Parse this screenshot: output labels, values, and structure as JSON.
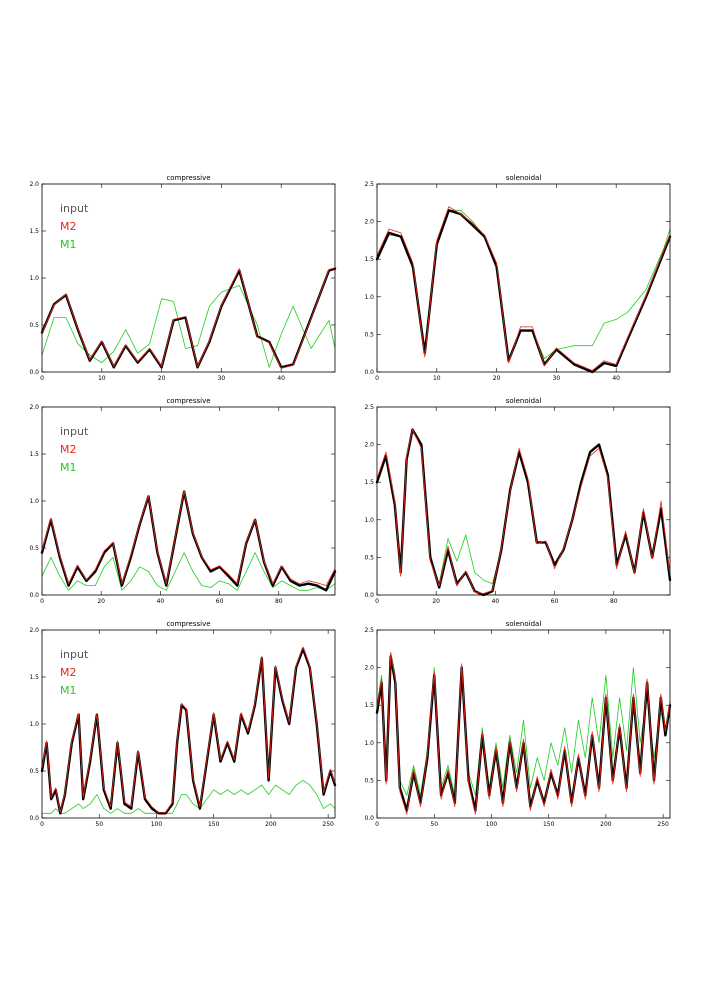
{
  "colors": {
    "input": "#000000",
    "M2": "#e8261a",
    "M1": "#22cc22"
  },
  "chart_data": [
    {
      "type": "line",
      "title": "compressive",
      "xlim": [
        0,
        49
      ],
      "ylim": [
        0,
        2.0
      ],
      "xticks": [
        0,
        10,
        20,
        30,
        40
      ],
      "yticks": [
        0.0,
        0.5,
        1.0,
        1.5,
        2.0
      ],
      "xtick_labels": [
        "0",
        "10",
        "20",
        "30",
        "40"
      ],
      "ytick_labels": [
        "0.0",
        "0.5",
        "1.0",
        "1.5",
        "2.0"
      ],
      "legend": [
        "input",
        "M2",
        "M1"
      ],
      "x": [
        0,
        2,
        4,
        6,
        8,
        10,
        12,
        14,
        16,
        18,
        20,
        22,
        24,
        26,
        28,
        30,
        33,
        36,
        38,
        40,
        42,
        45,
        48,
        49
      ],
      "series": [
        {
          "name": "input",
          "values": [
            0.42,
            0.72,
            0.82,
            0.45,
            0.12,
            0.32,
            0.05,
            0.28,
            0.1,
            0.24,
            0.05,
            0.55,
            0.58,
            0.05,
            0.32,
            0.7,
            1.08,
            0.38,
            0.32,
            0.05,
            0.08,
            0.58,
            1.08,
            1.1
          ]
        },
        {
          "name": "M2",
          "values": [
            0.41,
            0.71,
            0.83,
            0.46,
            0.13,
            0.33,
            0.06,
            0.29,
            0.11,
            0.25,
            0.06,
            0.56,
            0.59,
            0.06,
            0.33,
            0.71,
            1.1,
            0.37,
            0.31,
            0.04,
            0.07,
            0.57,
            1.09,
            1.11
          ]
        },
        {
          "name": "M1",
          "values": [
            0.18,
            0.58,
            0.58,
            0.3,
            0.18,
            0.1,
            0.22,
            0.45,
            0.2,
            0.3,
            0.78,
            0.75,
            0.25,
            0.28,
            0.7,
            0.85,
            0.92,
            0.5,
            0.05,
            0.4,
            0.7,
            0.25,
            0.55,
            0.25
          ]
        }
      ]
    },
    {
      "type": "line",
      "title": "solenoidal",
      "xlim": [
        0,
        49
      ],
      "ylim": [
        0,
        2.5
      ],
      "xticks": [
        0,
        10,
        20,
        30,
        40
      ],
      "yticks": [
        0.0,
        0.5,
        1.0,
        1.5,
        2.0,
        2.5
      ],
      "xtick_labels": [
        "0",
        "10",
        "20",
        "30",
        "40"
      ],
      "ytick_labels": [
        "0.0",
        "0.5",
        "1.0",
        "1.5",
        "2.0",
        "2.5"
      ],
      "x": [
        0,
        2,
        4,
        6,
        8,
        10,
        12,
        14,
        16,
        18,
        20,
        22,
        24,
        26,
        28,
        30,
        33,
        36,
        38,
        40,
        42,
        45,
        48,
        49
      ],
      "series": [
        {
          "name": "input",
          "values": [
            1.5,
            1.85,
            1.8,
            1.4,
            0.25,
            1.7,
            2.15,
            2.1,
            1.95,
            1.8,
            1.4,
            0.15,
            0.55,
            0.55,
            0.1,
            0.3,
            0.1,
            0.0,
            0.12,
            0.08,
            0.45,
            1.0,
            1.6,
            1.8
          ]
        },
        {
          "name": "M2",
          "values": [
            1.55,
            1.9,
            1.85,
            1.45,
            0.2,
            1.75,
            2.2,
            2.1,
            1.98,
            1.82,
            1.45,
            0.12,
            0.6,
            0.6,
            0.08,
            0.32,
            0.12,
            0.02,
            0.15,
            0.1,
            0.47,
            1.02,
            1.62,
            1.82
          ]
        },
        {
          "name": "M1",
          "values": [
            1.5,
            1.82,
            1.8,
            1.38,
            0.3,
            1.68,
            2.15,
            2.15,
            2.0,
            1.8,
            1.4,
            0.18,
            0.55,
            0.55,
            0.18,
            0.3,
            0.35,
            0.35,
            0.65,
            0.7,
            0.8,
            1.1,
            1.65,
            1.9
          ]
        }
      ]
    },
    {
      "type": "line",
      "title": "compressive",
      "xlim": [
        0,
        99
      ],
      "ylim": [
        0,
        2.0
      ],
      "xticks": [
        0,
        20,
        40,
        60,
        80
      ],
      "yticks": [
        0.0,
        0.5,
        1.0,
        1.5,
        2.0
      ],
      "xtick_labels": [
        "0",
        "20",
        "40",
        "60",
        "80"
      ],
      "ytick_labels": [
        "0.0",
        "0.5",
        "1.0",
        "1.5",
        "2.0"
      ],
      "legend": [
        "input",
        "M2",
        "M1"
      ],
      "x": [
        0,
        3,
        6,
        9,
        12,
        15,
        18,
        21,
        24,
        27,
        30,
        33,
        36,
        39,
        42,
        45,
        48,
        51,
        54,
        57,
        60,
        63,
        66,
        69,
        72,
        75,
        78,
        81,
        84,
        87,
        90,
        93,
        96,
        99
      ],
      "series": [
        {
          "name": "input",
          "values": [
            0.45,
            0.8,
            0.4,
            0.1,
            0.3,
            0.15,
            0.25,
            0.45,
            0.55,
            0.1,
            0.4,
            0.75,
            1.05,
            0.45,
            0.1,
            0.6,
            1.1,
            0.65,
            0.4,
            0.25,
            0.3,
            0.2,
            0.1,
            0.55,
            0.8,
            0.35,
            0.1,
            0.3,
            0.15,
            0.1,
            0.12,
            0.1,
            0.05,
            0.25
          ]
        },
        {
          "name": "M2",
          "values": [
            0.47,
            0.82,
            0.42,
            0.12,
            0.32,
            0.16,
            0.27,
            0.47,
            0.56,
            0.12,
            0.42,
            0.76,
            1.06,
            0.46,
            0.12,
            0.61,
            1.11,
            0.66,
            0.41,
            0.27,
            0.31,
            0.22,
            0.12,
            0.56,
            0.81,
            0.36,
            0.12,
            0.31,
            0.17,
            0.12,
            0.15,
            0.13,
            0.1,
            0.28
          ]
        },
        {
          "name": "M1",
          "values": [
            0.2,
            0.4,
            0.2,
            0.05,
            0.15,
            0.1,
            0.1,
            0.3,
            0.4,
            0.05,
            0.15,
            0.3,
            0.25,
            0.1,
            0.05,
            0.25,
            0.45,
            0.25,
            0.1,
            0.08,
            0.15,
            0.12,
            0.05,
            0.25,
            0.45,
            0.25,
            0.08,
            0.15,
            0.1,
            0.05,
            0.05,
            0.08,
            0.05,
            0.12
          ]
        }
      ]
    },
    {
      "type": "line",
      "title": "solenoidal",
      "xlim": [
        0,
        99
      ],
      "ylim": [
        0,
        2.5
      ],
      "xticks": [
        0,
        20,
        40,
        60,
        80
      ],
      "yticks": [
        0.0,
        0.5,
        1.0,
        1.5,
        2.0,
        2.5
      ],
      "xtick_labels": [
        "0",
        "20",
        "40",
        "60",
        "80"
      ],
      "ytick_labels": [
        "0.0",
        "0.5",
        "1.0",
        "1.5",
        "2.0",
        "2.5"
      ],
      "x": [
        0,
        3,
        6,
        8,
        10,
        12,
        15,
        18,
        21,
        24,
        27,
        30,
        33,
        36,
        39,
        42,
        45,
        48,
        51,
        54,
        57,
        60,
        63,
        66,
        69,
        72,
        75,
        78,
        81,
        84,
        87,
        90,
        93,
        96,
        99
      ],
      "series": [
        {
          "name": "input",
          "values": [
            1.5,
            1.85,
            1.2,
            0.3,
            1.8,
            2.2,
            2.0,
            0.5,
            0.1,
            0.6,
            0.15,
            0.3,
            0.05,
            0.0,
            0.05,
            0.6,
            1.4,
            1.9,
            1.5,
            0.7,
            0.7,
            0.4,
            0.6,
            1.0,
            1.5,
            1.9,
            2.0,
            1.6,
            0.4,
            0.8,
            0.3,
            1.1,
            0.5,
            1.15,
            0.2
          ]
        },
        {
          "name": "M2",
          "values": [
            1.55,
            1.9,
            1.25,
            0.25,
            1.85,
            2.2,
            1.95,
            0.45,
            0.12,
            0.65,
            0.12,
            0.32,
            0.04,
            0.02,
            0.06,
            0.62,
            1.38,
            1.95,
            1.55,
            0.68,
            0.72,
            0.35,
            0.62,
            1.0,
            1.45,
            1.85,
            1.95,
            1.55,
            0.35,
            0.85,
            0.28,
            1.15,
            0.48,
            1.25,
            0.25
          ]
        },
        {
          "name": "M1",
          "values": [
            1.5,
            1.85,
            1.2,
            0.35,
            1.8,
            2.2,
            2.0,
            0.5,
            0.15,
            0.75,
            0.45,
            0.8,
            0.3,
            0.2,
            0.15,
            0.6,
            1.4,
            1.9,
            1.5,
            0.7,
            0.7,
            0.4,
            0.6,
            1.0,
            1.5,
            1.9,
            2.0,
            1.6,
            0.4,
            0.8,
            0.3,
            1.1,
            0.5,
            1.15,
            0.2
          ]
        }
      ]
    },
    {
      "type": "line",
      "title": "compressive",
      "xlim": [
        0,
        256
      ],
      "ylim": [
        0,
        2.0
      ],
      "xticks": [
        0,
        50,
        100,
        150,
        200,
        250
      ],
      "yticks": [
        0.0,
        0.5,
        1.0,
        1.5,
        2.0
      ],
      "xtick_labels": [
        "0",
        "50",
        "100",
        "150",
        "200",
        "250"
      ],
      "ytick_labels": [
        "0.0",
        "0.5",
        "1.0",
        "1.5",
        "2.0"
      ],
      "legend": [
        "input",
        "M2",
        "M1"
      ],
      "x": [
        0,
        4,
        8,
        12,
        16,
        20,
        26,
        32,
        36,
        42,
        48,
        54,
        60,
        66,
        72,
        78,
        84,
        90,
        96,
        102,
        108,
        114,
        118,
        122,
        126,
        132,
        138,
        144,
        150,
        156,
        162,
        168,
        174,
        180,
        186,
        192,
        198,
        204,
        210,
        216,
        222,
        228,
        234,
        240,
        246,
        252,
        256
      ],
      "series": [
        {
          "name": "input",
          "values": [
            0.5,
            0.8,
            0.2,
            0.3,
            0.05,
            0.25,
            0.8,
            1.1,
            0.2,
            0.6,
            1.1,
            0.3,
            0.1,
            0.8,
            0.15,
            0.1,
            0.7,
            0.2,
            0.1,
            0.05,
            0.05,
            0.15,
            0.8,
            1.2,
            1.15,
            0.4,
            0.1,
            0.6,
            1.1,
            0.6,
            0.8,
            0.6,
            1.1,
            0.9,
            1.2,
            1.7,
            0.4,
            1.6,
            1.25,
            1.0,
            1.6,
            1.8,
            1.6,
            1.0,
            0.25,
            0.5,
            0.35
          ]
        },
        {
          "name": "M2",
          "values": [
            0.52,
            0.82,
            0.22,
            0.32,
            0.06,
            0.27,
            0.82,
            1.11,
            0.22,
            0.62,
            1.11,
            0.32,
            0.12,
            0.82,
            0.17,
            0.12,
            0.72,
            0.22,
            0.12,
            0.06,
            0.06,
            0.17,
            0.82,
            1.22,
            1.16,
            0.42,
            0.12,
            0.62,
            1.12,
            0.62,
            0.82,
            0.62,
            1.12,
            0.92,
            1.22,
            1.72,
            0.42,
            1.62,
            1.27,
            1.02,
            1.62,
            1.82,
            1.62,
            1.02,
            0.27,
            0.52,
            0.37
          ]
        },
        {
          "name": "M1",
          "values": [
            0.05,
            0.05,
            0.05,
            0.1,
            0.05,
            0.05,
            0.1,
            0.15,
            0.1,
            0.15,
            0.25,
            0.1,
            0.05,
            0.1,
            0.05,
            0.05,
            0.1,
            0.05,
            0.05,
            0.05,
            0.05,
            0.05,
            0.15,
            0.25,
            0.25,
            0.15,
            0.1,
            0.2,
            0.3,
            0.25,
            0.3,
            0.25,
            0.3,
            0.25,
            0.3,
            0.35,
            0.25,
            0.35,
            0.3,
            0.25,
            0.35,
            0.4,
            0.35,
            0.25,
            0.1,
            0.15,
            0.1
          ]
        }
      ]
    },
    {
      "type": "line",
      "title": "solenoidal",
      "xlim": [
        0,
        256
      ],
      "ylim": [
        0,
        2.5
      ],
      "xticks": [
        0,
        50,
        100,
        150,
        200,
        250
      ],
      "yticks": [
        0.0,
        0.5,
        1.0,
        1.5,
        2.0,
        2.5
      ],
      "xtick_labels": [
        "0",
        "50",
        "100",
        "150",
        "200",
        "250"
      ],
      "ytick_labels": [
        "0.0",
        "0.5",
        "1.0",
        "1.5",
        "2.0",
        "2.5"
      ],
      "x": [
        0,
        4,
        8,
        12,
        16,
        20,
        26,
        32,
        38,
        44,
        50,
        56,
        62,
        68,
        74,
        80,
        86,
        92,
        98,
        104,
        110,
        116,
        122,
        128,
        134,
        140,
        146,
        152,
        158,
        164,
        170,
        176,
        182,
        188,
        194,
        200,
        206,
        212,
        218,
        224,
        230,
        236,
        242,
        248,
        252,
        256
      ],
      "series": [
        {
          "name": "input",
          "values": [
            1.4,
            1.8,
            0.5,
            2.15,
            1.8,
            0.4,
            0.1,
            0.6,
            0.2,
            0.8,
            1.9,
            0.3,
            0.6,
            0.2,
            2.0,
            0.5,
            0.1,
            1.1,
            0.3,
            0.9,
            0.2,
            1.0,
            0.4,
            1.0,
            0.15,
            0.5,
            0.2,
            0.6,
            0.3,
            0.9,
            0.2,
            0.8,
            0.3,
            1.1,
            0.4,
            1.6,
            0.5,
            1.2,
            0.4,
            1.6,
            0.6,
            1.8,
            0.5,
            1.6,
            1.1,
            1.5
          ]
        },
        {
          "name": "M2",
          "values": [
            1.45,
            1.85,
            0.45,
            2.2,
            1.85,
            0.35,
            0.05,
            0.65,
            0.15,
            0.85,
            1.95,
            0.25,
            0.65,
            0.15,
            2.05,
            0.45,
            0.05,
            1.15,
            0.25,
            0.95,
            0.15,
            1.05,
            0.35,
            1.05,
            0.1,
            0.55,
            0.15,
            0.65,
            0.25,
            0.95,
            0.15,
            0.85,
            0.25,
            1.15,
            0.35,
            1.65,
            0.45,
            1.25,
            0.35,
            1.65,
            0.55,
            1.85,
            0.45,
            1.65,
            1.15,
            1.55
          ]
        },
        {
          "name": "M1",
          "values": [
            1.5,
            1.9,
            0.6,
            2.2,
            1.9,
            0.5,
            0.3,
            0.7,
            0.3,
            0.9,
            2.0,
            0.4,
            0.7,
            0.3,
            2.0,
            0.6,
            0.3,
            1.2,
            0.4,
            1.0,
            0.4,
            1.1,
            0.6,
            1.3,
            0.4,
            0.8,
            0.5,
            1.0,
            0.7,
            1.2,
            0.6,
            1.3,
            0.8,
            1.6,
            1.0,
            1.9,
            0.8,
            1.6,
            0.9,
            2.0,
            1.0,
            1.6,
            0.8,
            1.4,
            1.2,
            1.5
          ]
        }
      ]
    }
  ]
}
